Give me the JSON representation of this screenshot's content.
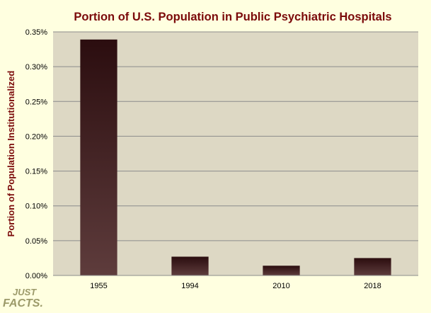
{
  "chart_data": {
    "type": "bar",
    "title": "Portion of U.S. Population in Public Psychiatric Hospitals",
    "xlabel": "",
    "ylabel": "Portion of Population Institutionalized",
    "categories": [
      "1955",
      "1994",
      "2010",
      "2018"
    ],
    "values": [
      0.339,
      0.027,
      0.014,
      0.025
    ],
    "value_unit": "%",
    "ylim": [
      0,
      0.35
    ],
    "yticks": [
      "0.00%",
      "0.05%",
      "0.10%",
      "0.15%",
      "0.20%",
      "0.25%",
      "0.30%",
      "0.35%"
    ],
    "grid": true,
    "legend": "none"
  },
  "logo": {
    "line1": "JUST",
    "line2": "FACTS."
  },
  "colors": {
    "page_background": "#FFFFE0",
    "plot_background": "#DDD8C4",
    "gridline": "#8C8C8C",
    "bar_top": "#2B0D0F",
    "bar_bottom": "#5E3C3C",
    "title": "#7B0A0A",
    "logo": "#9C9A6A"
  }
}
